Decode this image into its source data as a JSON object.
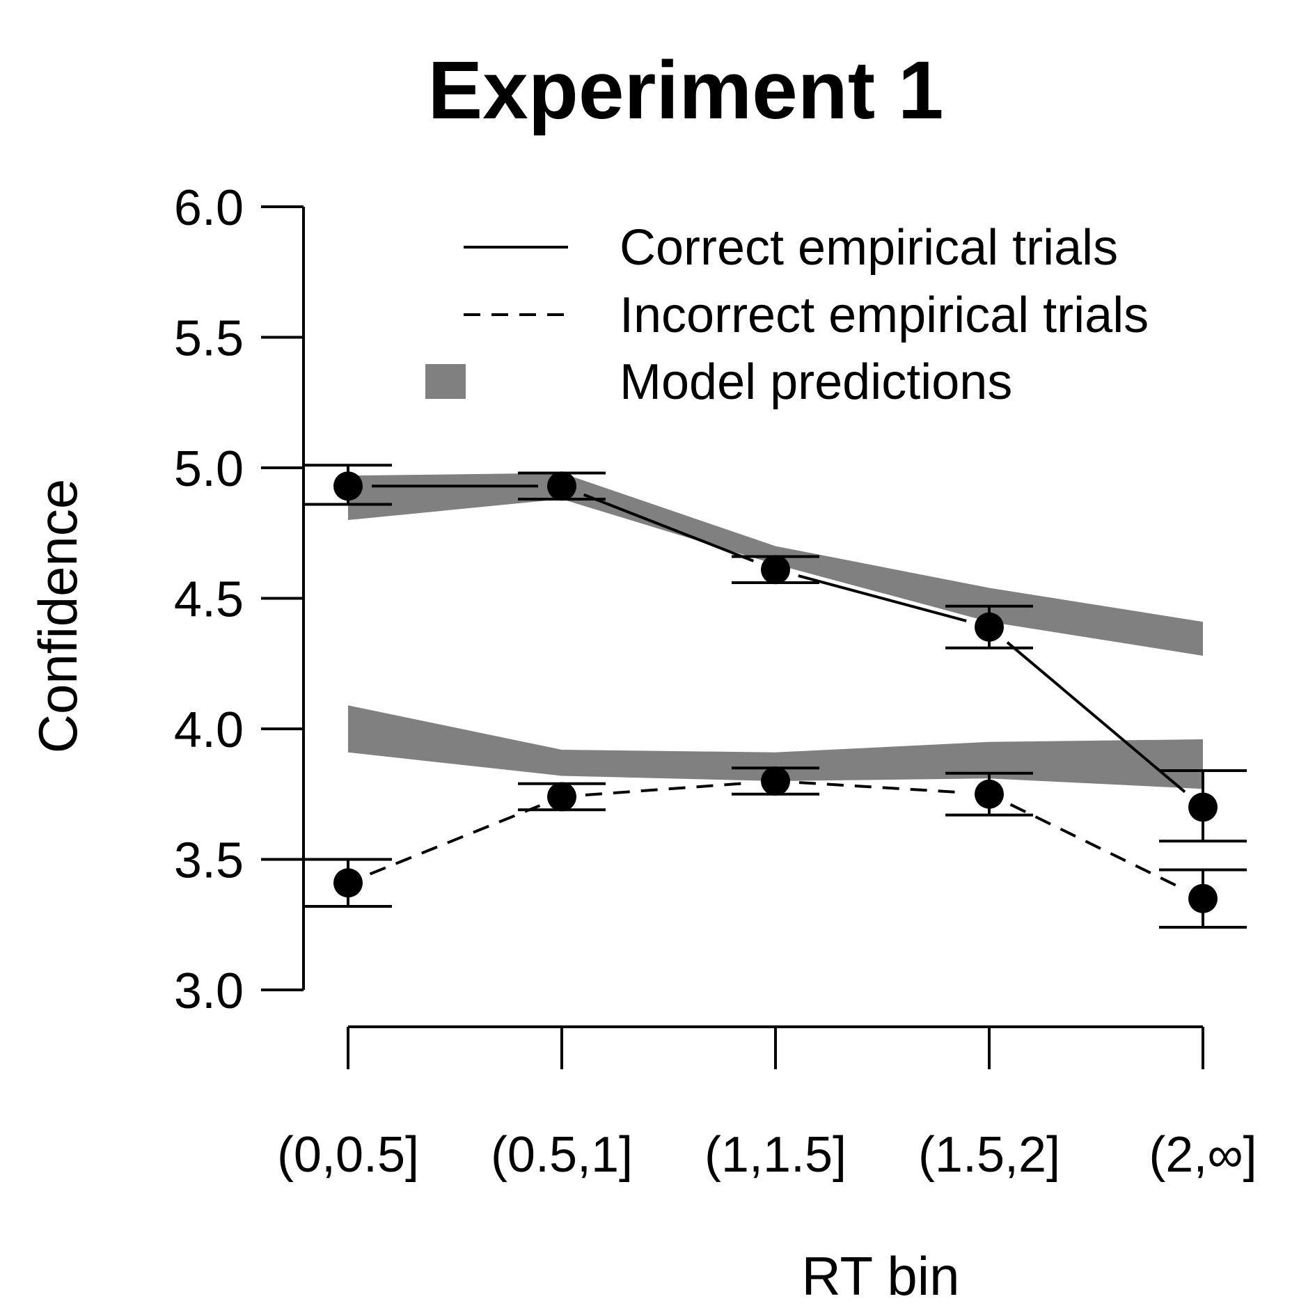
{
  "chart_data": {
    "type": "line",
    "title": "Experiment 1",
    "xlabel": "RT bin",
    "ylabel": "Confidence",
    "categories": [
      "(0,0.5]",
      "(0.5,1]",
      "(1,1.5]",
      "(1.5,2]",
      "(2,∞]"
    ],
    "ylim": [
      3.0,
      6.0
    ],
    "yticks": [
      "3.0",
      "3.5",
      "4.0",
      "4.5",
      "5.0",
      "5.5",
      "6.0"
    ],
    "legend_position": "top-right",
    "legend": [
      {
        "label": "Correct empirical trials",
        "style": "solid"
      },
      {
        "label": "Incorrect empirical trials",
        "style": "dashed"
      },
      {
        "label": "Model predictions",
        "style": "band"
      }
    ],
    "series": [
      {
        "name": "Correct empirical trials",
        "style": "solid",
        "values": [
          4.93,
          4.93,
          4.61,
          4.39,
          3.7
        ],
        "error_lower": [
          4.86,
          4.88,
          4.56,
          4.31,
          3.57
        ],
        "error_upper": [
          5.01,
          4.98,
          4.66,
          4.47,
          3.84
        ]
      },
      {
        "name": "Incorrect empirical trials",
        "style": "dashed",
        "values": [
          3.41,
          3.74,
          3.8,
          3.75,
          3.35
        ],
        "error_lower": [
          3.32,
          3.69,
          3.75,
          3.67,
          3.24
        ],
        "error_upper": [
          3.5,
          3.79,
          3.85,
          3.83,
          3.46
        ]
      }
    ],
    "model_bands": [
      {
        "name": "Model predictions (correct)",
        "lower": [
          4.8,
          4.88,
          4.63,
          4.41,
          4.28
        ],
        "upper": [
          4.97,
          4.98,
          4.7,
          4.54,
          4.41
        ]
      },
      {
        "name": "Model predictions (incorrect)",
        "lower": [
          3.91,
          3.82,
          3.8,
          3.81,
          3.77
        ],
        "upper": [
          4.09,
          3.92,
          3.91,
          3.95,
          3.96
        ]
      }
    ],
    "band_color": "#808080",
    "line_color": "#000000"
  }
}
